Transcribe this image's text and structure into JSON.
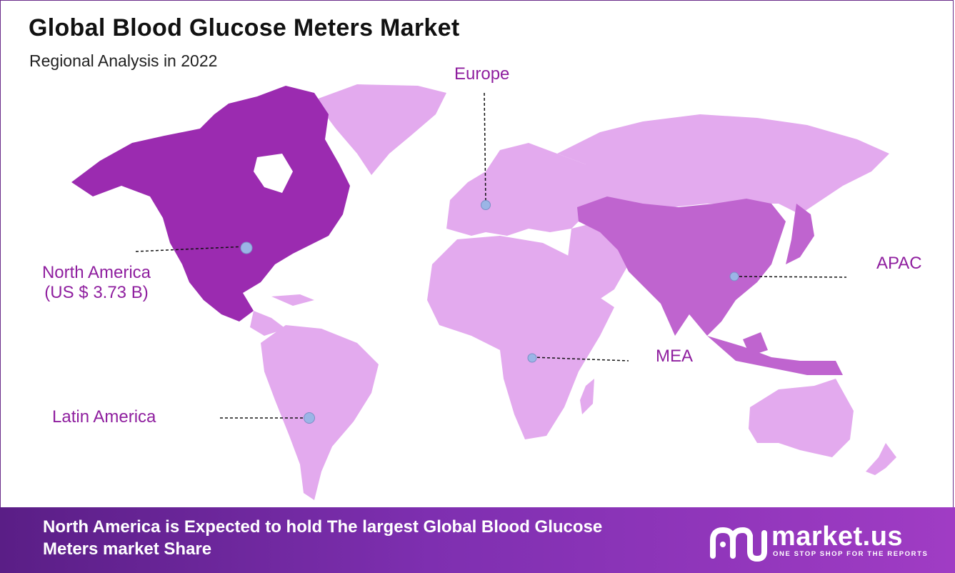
{
  "header": {
    "title": "Global Blood Glucose Meters Market",
    "subtitle": "Regional Analysis in 2022"
  },
  "regions": [
    {
      "name": "North America",
      "value": "(US $ 3.73 B)",
      "color": "#9b2bb0"
    },
    {
      "name": "Europe",
      "color": "#e3aaee"
    },
    {
      "name": "APAC",
      "color": "#bf64cf"
    },
    {
      "name": "MEA",
      "color": "#e3aaee"
    },
    {
      "name": "Latin America",
      "color": "#e3aaee"
    }
  ],
  "colors": {
    "label": "#8f1f9f",
    "marker": "#9bb5e6",
    "banner_start": "#5a1e86",
    "banner_end": "#a03cc4"
  },
  "footer": {
    "message": "North America is Expected to hold The largest Global Blood Glucose Meters market Share",
    "brand_name": "market.us",
    "brand_tagline": "ONE STOP SHOP FOR THE REPORTS",
    "brand_icon": "market-us-logo-icon"
  }
}
